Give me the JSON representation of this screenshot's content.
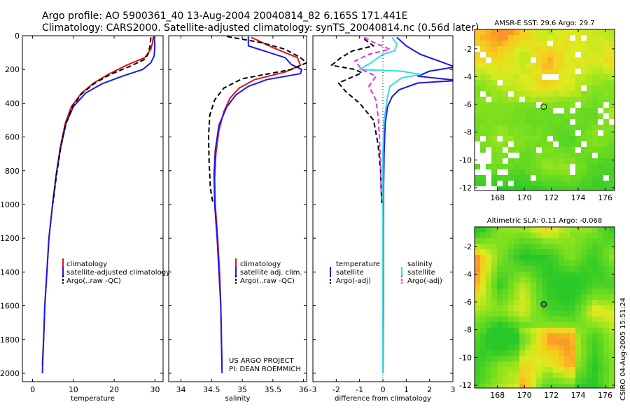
{
  "title_line1": "Argo profile: AO 5900361_40 13-Aug-2004 20040814_82 6.165S 171.441E",
  "title_line2": "Climatology: CARS2000. Satellite-adjusted climatology: synTS_20040814.nc (0.56d later)",
  "colors": {
    "climatology": "#e0141a",
    "satellite": "#1a1ae6",
    "argo": "#000000",
    "sat_salinity": "#33dddd",
    "argo_salinity": "#e62ee6"
  },
  "credit": {
    "line1": "US ARGO PROJECT",
    "line2": "PI: DEAN ROEMMICH"
  },
  "stamp": "CSIRO 04-Aug-2005 15:51:24",
  "chart_data": [
    {
      "type": "line",
      "xlabel": "temperature",
      "xlim": [
        -2.5,
        32
      ],
      "ylim": [
        0,
        2050
      ],
      "y_inverted": true,
      "xticks": [
        0,
        10,
        20,
        30
      ],
      "yticks": [
        0,
        200,
        400,
        600,
        800,
        1000,
        1200,
        1400,
        1600,
        1800,
        2000
      ],
      "legend": {
        "placement": "lower-right",
        "entries": [
          "climatology",
          "satellite-adjusted climatology",
          "Argo(..raw -QC)"
        ]
      },
      "series": [
        {
          "name": "climatology",
          "style": "solid",
          "color_key": "climatology",
          "points": [
            [
              29.6,
              5
            ],
            [
              29.4,
              40
            ],
            [
              29.0,
              80
            ],
            [
              27.5,
              130
            ],
            [
              23.0,
              175
            ],
            [
              18.5,
              230
            ],
            [
              15.0,
              280
            ],
            [
              12.0,
              340
            ],
            [
              9.5,
              420
            ],
            [
              8.0,
              520
            ],
            [
              6.8,
              660
            ],
            [
              5.8,
              820
            ],
            [
              4.9,
              1000
            ],
            [
              4.0,
              1200
            ],
            [
              3.5,
              1400
            ],
            [
              3.0,
              1600
            ],
            [
              2.7,
              1800
            ],
            [
              2.4,
              1950
            ]
          ]
        },
        {
          "name": "satellite-adjusted climatology",
          "style": "solid",
          "color_key": "satellite",
          "points": [
            [
              29.8,
              5
            ],
            [
              30.0,
              60
            ],
            [
              29.8,
              120
            ],
            [
              29.0,
              160
            ],
            [
              27.0,
              200
            ],
            [
              22.0,
              240
            ],
            [
              17.0,
              285
            ],
            [
              13.0,
              340
            ],
            [
              10.0,
              420
            ],
            [
              8.2,
              520
            ],
            [
              6.9,
              660
            ],
            [
              5.8,
              820
            ],
            [
              4.9,
              1000
            ],
            [
              4.0,
              1200
            ],
            [
              3.5,
              1400
            ],
            [
              3.0,
              1600
            ],
            [
              2.7,
              1800
            ],
            [
              2.4,
              2000
            ]
          ]
        },
        {
          "name": "Argo(..raw -QC)",
          "style": "dashed",
          "color_key": "argo",
          "points": [
            [
              29.0,
              10
            ],
            [
              28.8,
              60
            ],
            [
              28.3,
              110
            ],
            [
              27.5,
              140
            ],
            [
              24.0,
              180
            ],
            [
              19.0,
              230
            ],
            [
              15.0,
              285
            ],
            [
              12.0,
              345
            ],
            [
              9.8,
              420
            ],
            [
              8.2,
              520
            ],
            [
              6.9,
              660
            ],
            [
              5.9,
              820
            ],
            [
              5.0,
              990
            ]
          ]
        }
      ]
    },
    {
      "type": "line",
      "xlabel": "salinity",
      "xlim": [
        33.8,
        36.05
      ],
      "ylim": [
        0,
        2050
      ],
      "y_inverted": true,
      "xticks": [
        34,
        34.5,
        35,
        35.5,
        36
      ],
      "legend": {
        "placement": "lower-right",
        "entries": [
          "climatology",
          "satellite adj. clim.",
          "Argo(..raw -QC)"
        ]
      },
      "series": [
        {
          "name": "climatology",
          "style": "solid",
          "color_key": "climatology",
          "points": [
            [
              35.15,
              10
            ],
            [
              35.5,
              70
            ],
            [
              35.9,
              130
            ],
            [
              35.95,
              175
            ],
            [
              35.7,
              215
            ],
            [
              35.2,
              260
            ],
            [
              34.95,
              310
            ],
            [
              34.8,
              370
            ],
            [
              34.7,
              450
            ],
            [
              34.62,
              560
            ],
            [
              34.57,
              700
            ],
            [
              34.55,
              850
            ],
            [
              34.56,
              1000
            ],
            [
              34.6,
              1200
            ],
            [
              34.63,
              1400
            ],
            [
              34.65,
              1600
            ],
            [
              34.66,
              1800
            ],
            [
              34.67,
              1950
            ]
          ]
        },
        {
          "name": "satellite adj. clim.",
          "style": "solid",
          "color_key": "satellite",
          "points": [
            [
              35.1,
              5
            ],
            [
              35.1,
              60
            ],
            [
              35.7,
              130
            ],
            [
              35.8,
              170
            ],
            [
              35.97,
              200
            ],
            [
              35.95,
              225
            ],
            [
              35.4,
              260
            ],
            [
              35.1,
              300
            ],
            [
              34.9,
              350
            ],
            [
              34.75,
              420
            ],
            [
              34.62,
              530
            ],
            [
              34.56,
              680
            ],
            [
              34.54,
              820
            ],
            [
              34.55,
              1000
            ],
            [
              34.59,
              1200
            ],
            [
              34.62,
              1400
            ],
            [
              34.65,
              1600
            ],
            [
              34.66,
              1800
            ],
            [
              34.67,
              2000
            ]
          ]
        },
        {
          "name": "Argo(..raw -QC)",
          "style": "dashed",
          "color_key": "argo",
          "points": [
            [
              34.75,
              5
            ],
            [
              35.3,
              40
            ],
            [
              35.7,
              80
            ],
            [
              35.95,
              130
            ],
            [
              36.05,
              160
            ],
            [
              35.8,
              200
            ],
            [
              35.0,
              255
            ],
            [
              34.7,
              310
            ],
            [
              34.55,
              380
            ],
            [
              34.47,
              470
            ],
            [
              34.45,
              600
            ],
            [
              34.46,
              750
            ],
            [
              34.48,
              900
            ],
            [
              34.52,
              990
            ]
          ]
        }
      ]
    },
    {
      "type": "line",
      "xlabel": "difference from climatology",
      "xlim": [
        -3,
        3
      ],
      "ylim": [
        0,
        2050
      ],
      "y_inverted": true,
      "xticks": [
        -3,
        -2,
        -1,
        0,
        1,
        2,
        3
      ],
      "legend": {
        "placement": "lower",
        "entries_left": [
          "temperature",
          "satellite",
          "Argo(-adj)"
        ],
        "entries_right": [
          "salinity",
          "satellite",
          "Argo(-adj)"
        ]
      },
      "series": [
        {
          "name": "satellite",
          "group": "temperature",
          "style": "solid",
          "color_key": "satellite",
          "points": [
            [
              0.6,
              10
            ],
            [
              1.0,
              60
            ],
            [
              1.6,
              110
            ],
            [
              2.6,
              160
            ],
            [
              3.1,
              185
            ],
            [
              2.0,
              210
            ],
            [
              1.5,
              240
            ],
            [
              3.2,
              265
            ],
            [
              1.5,
              280
            ],
            [
              0.7,
              320
            ],
            [
              0.4,
              360
            ],
            [
              0.2,
              420
            ],
            [
              0.1,
              520
            ],
            [
              0.05,
              700
            ],
            [
              0.03,
              900
            ],
            [
              0.02,
              1200
            ],
            [
              0.02,
              1600
            ],
            [
              0.01,
              2000
            ]
          ]
        },
        {
          "name": "satellite",
          "group": "salinity",
          "style": "solid",
          "color_key": "sat_salinity",
          "points": [
            [
              0.4,
              10
            ],
            [
              0.6,
              50
            ],
            [
              0.5,
              90
            ],
            [
              0.0,
              110
            ],
            [
              -0.5,
              160
            ],
            [
              -1.0,
              200
            ],
            [
              0.8,
              210
            ],
            [
              1.6,
              230
            ],
            [
              0.8,
              250
            ],
            [
              0.3,
              300
            ],
            [
              0.2,
              360
            ],
            [
              0.05,
              500
            ],
            [
              0.0,
              700
            ],
            [
              0.0,
              1000
            ],
            [
              0.0,
              1300
            ],
            [
              0.0,
              1600
            ],
            [
              0.0,
              1800
            ],
            [
              0.0,
              2000
            ]
          ]
        },
        {
          "name": "Argo(-adj)",
          "group": "temperature",
          "style": "dashed",
          "color_key": "argo",
          "points": [
            [
              -0.8,
              20
            ],
            [
              -0.4,
              60
            ],
            [
              -1.3,
              90
            ],
            [
              -1.8,
              130
            ],
            [
              -2.2,
              175
            ],
            [
              -1.2,
              200
            ],
            [
              -0.9,
              220
            ],
            [
              -1.4,
              250
            ],
            [
              -1.9,
              280
            ],
            [
              -1.6,
              330
            ],
            [
              -1.0,
              400
            ],
            [
              -0.4,
              500
            ],
            [
              -0.2,
              650
            ],
            [
              -0.1,
              800
            ],
            [
              -0.05,
              990
            ]
          ]
        },
        {
          "name": "Argo(-adj)",
          "group": "salinity",
          "style": "dashed",
          "color_key": "argo_salinity",
          "points": [
            [
              -0.8,
              10
            ],
            [
              -0.4,
              40
            ],
            [
              0.3,
              80
            ],
            [
              -0.6,
              110
            ],
            [
              -1.2,
              150
            ],
            [
              -0.9,
              200
            ],
            [
              -0.3,
              240
            ],
            [
              -0.6,
              300
            ],
            [
              -0.3,
              380
            ],
            [
              -0.2,
              480
            ],
            [
              -0.15,
              600
            ],
            [
              -0.1,
              750
            ],
            [
              -0.08,
              900
            ],
            [
              -0.05,
              990
            ]
          ]
        }
      ]
    },
    {
      "type": "heatmap",
      "title": "AMSR-E SST: 29.6 Argo: 29.7",
      "xlim": [
        166.3,
        176.7
      ],
      "ylim": [
        -12.2,
        -0.6
      ],
      "xticks": [
        168,
        170,
        172,
        174,
        176
      ],
      "yticks": [
        -2,
        -4,
        -6,
        -8,
        -10,
        -12
      ],
      "marker": [
        171.44,
        -6.17
      ]
    },
    {
      "type": "heatmap",
      "title": "Altimetric SLA: 0.11 Argo: -0.068",
      "xlim": [
        166.3,
        176.7
      ],
      "ylim": [
        -12.2,
        -0.6
      ],
      "xticks": [
        168,
        170,
        172,
        174,
        176
      ],
      "yticks": [
        -2,
        -4,
        -6,
        -8,
        -10,
        -12
      ],
      "marker": [
        171.44,
        -6.17
      ]
    }
  ]
}
